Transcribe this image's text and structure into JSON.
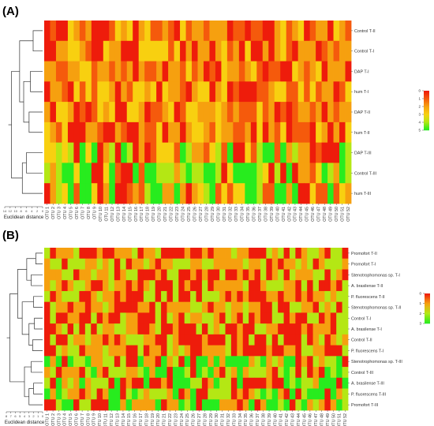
{
  "chart_data": [
    {
      "type": "heatmap",
      "panel": "(A)",
      "title": "",
      "xlabel": "",
      "ylabel": "",
      "dendrogram_label": "Euclidean distance",
      "dendrogram_ticks": [
        "14",
        "12",
        "10",
        "8",
        "6",
        "4",
        "2",
        "0"
      ],
      "columns": [
        "OTU 1",
        "OTU 2",
        "OTU 3",
        "OTU 4",
        "OTU 5",
        "OTU 6",
        "OTU 7",
        "OTU 8",
        "OTU 9",
        "OTU 10",
        "OTU 11",
        "OTU 12",
        "OTU 13",
        "OTU 14",
        "OTU 15",
        "OTU 16",
        "OTU 17",
        "OTU 18",
        "OTU 19",
        "OTU 20",
        "OTU 21",
        "OTU 22",
        "OTU 23",
        "OTU 24",
        "OTU 25",
        "OTU 26",
        "OTU 27",
        "OTU 28",
        "OTU 29",
        "OTU 30",
        "OTU 31",
        "OTU 32",
        "OTU 33",
        "OTU 34",
        "OTU 35",
        "OTU 36",
        "OTU 37",
        "OTU 38",
        "OTU 39",
        "OTU 40",
        "OTU 41",
        "OTU 42",
        "OTU 43",
        "OTU 44",
        "OTU 45",
        "OTU 46",
        "OTU 47",
        "OTU 48",
        "OTU 49",
        "OTU 50",
        "OTU 51",
        "OTU 52"
      ],
      "rows": [
        "Control T-II",
        "Control T-I",
        "DAP T-I",
        "hum T-I",
        "DAP T-II",
        "hum T-II",
        "DAP T-III",
        "Control T-III",
        "hum T-III"
      ],
      "color_scale": {
        "ticks": [
          "0",
          "1",
          "2",
          "3",
          "4",
          "5"
        ],
        "vmin": 0,
        "vmax": 5,
        "colors": [
          "#ee1c0b",
          "#f55a0c",
          "#f6a00f",
          "#f8d010",
          "#b4e714",
          "#27ec1e"
        ]
      }
    },
    {
      "type": "heatmap",
      "panel": "(B)",
      "title": "",
      "xlabel": "",
      "ylabel": "",
      "dendrogram_label": "Euclidean distance",
      "dendrogram_ticks": [
        "8",
        "7",
        "6",
        "5",
        "4",
        "3",
        "2",
        "1",
        "0"
      ],
      "columns": [
        "OTU 1",
        "OTU 2",
        "OTU 3",
        "OTU 4",
        "OTU 5",
        "OTU 6",
        "OTU 7",
        "OTU 8",
        "OTU 9",
        "OTU 10",
        "OTU 11",
        "OTU 12",
        "OTU 13",
        "OTU 14",
        "OTU 15",
        "OTU 16",
        "OTU 17",
        "OTU 18",
        "OTU 19",
        "OTU 20",
        "OTU 21",
        "OTU 22",
        "OTU 23",
        "OTU 24",
        "OTU 25",
        "OTU 26",
        "OTU 27",
        "OTU 28",
        "OTU 29",
        "OTU 30",
        "OTU 31",
        "OTU 32",
        "OTU 33",
        "OTU 34",
        "OTU 35",
        "OTU 36",
        "OTU 37",
        "OTU 38",
        "OTU 39",
        "OTU 40",
        "OTU 41",
        "OTU 42",
        "OTU 43",
        "OTU 44",
        "OTU 45",
        "OTU 46",
        "OTU 47",
        "OTU 48",
        "OTU 49",
        "OTU 50",
        "OTU 51",
        "OTU 52"
      ],
      "rows": [
        "Promofort T-II",
        "Promofort T-I",
        "Stenotrophomonas sp. T-I",
        "A. brasilense T-II",
        "P. fluorescens T-II",
        "Stenotrophomonas sp. T-II",
        "Control T-I",
        "A. brasilense T-I",
        "Control T-II",
        "P. fluorescens T-I",
        "Stenotrophomonas sp. T-III",
        "Control T-III",
        "A. brasilense T-III",
        "P. fluorescens T-III",
        "Promofort T-III"
      ],
      "color_scale": {
        "ticks": [
          "0",
          "1",
          "2",
          "3"
        ],
        "vmin": 0,
        "vmax": 3,
        "colors": [
          "#ee1c0b",
          "#f6a00f",
          "#b4e714",
          "#27ec1e"
        ]
      }
    }
  ]
}
